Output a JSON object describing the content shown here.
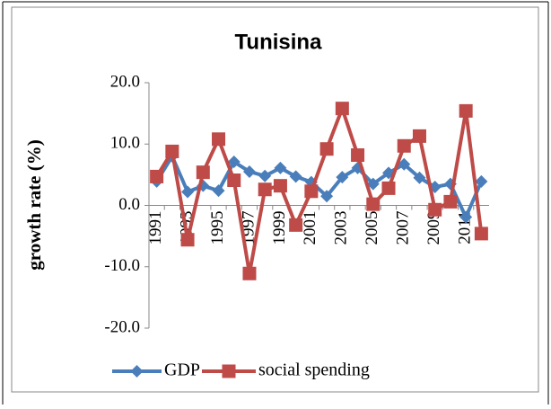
{
  "chart_data": {
    "type": "line",
    "title": "Tunisina",
    "y_label": "growth rate (%)",
    "categories": [
      "1991",
      null,
      "1993",
      null,
      "1995",
      null,
      "1997",
      null,
      "1999",
      null,
      "2001",
      null,
      "2003",
      null,
      "2005",
      null,
      "2007",
      null,
      "2009",
      null,
      "2011",
      null
    ],
    "series": [
      {
        "name": "GDP",
        "color": "#4a7ebb",
        "marker": "diamond",
        "values": [
          3.9,
          8.0,
          2.2,
          3.2,
          2.4,
          7.1,
          5.5,
          4.8,
          6.1,
          4.7,
          3.8,
          1.5,
          4.6,
          6.1,
          3.5,
          5.3,
          6.7,
          4.5,
          3.0,
          3.5,
          -1.9,
          3.9
        ]
      },
      {
        "name": "social spending",
        "color": "#be4b48",
        "marker": "square",
        "values": [
          4.7,
          8.8,
          -5.6,
          5.4,
          10.8,
          4.1,
          -11.1,
          2.6,
          3.2,
          -3.2,
          2.3,
          9.2,
          15.8,
          8.2,
          0.2,
          2.8,
          9.7,
          11.3,
          -0.7,
          0.6,
          15.4,
          -4.6
        ]
      }
    ],
    "ylim": [
      -20,
      20
    ],
    "yticks": [
      {
        "value": -20,
        "label": "-20.0"
      },
      {
        "value": -10,
        "label": "-10.0"
      },
      {
        "value": 0,
        "label": "0.0"
      },
      {
        "value": 10,
        "label": "10.0"
      },
      {
        "value": 20,
        "label": "20.0"
      }
    ],
    "legend": "bottom"
  }
}
